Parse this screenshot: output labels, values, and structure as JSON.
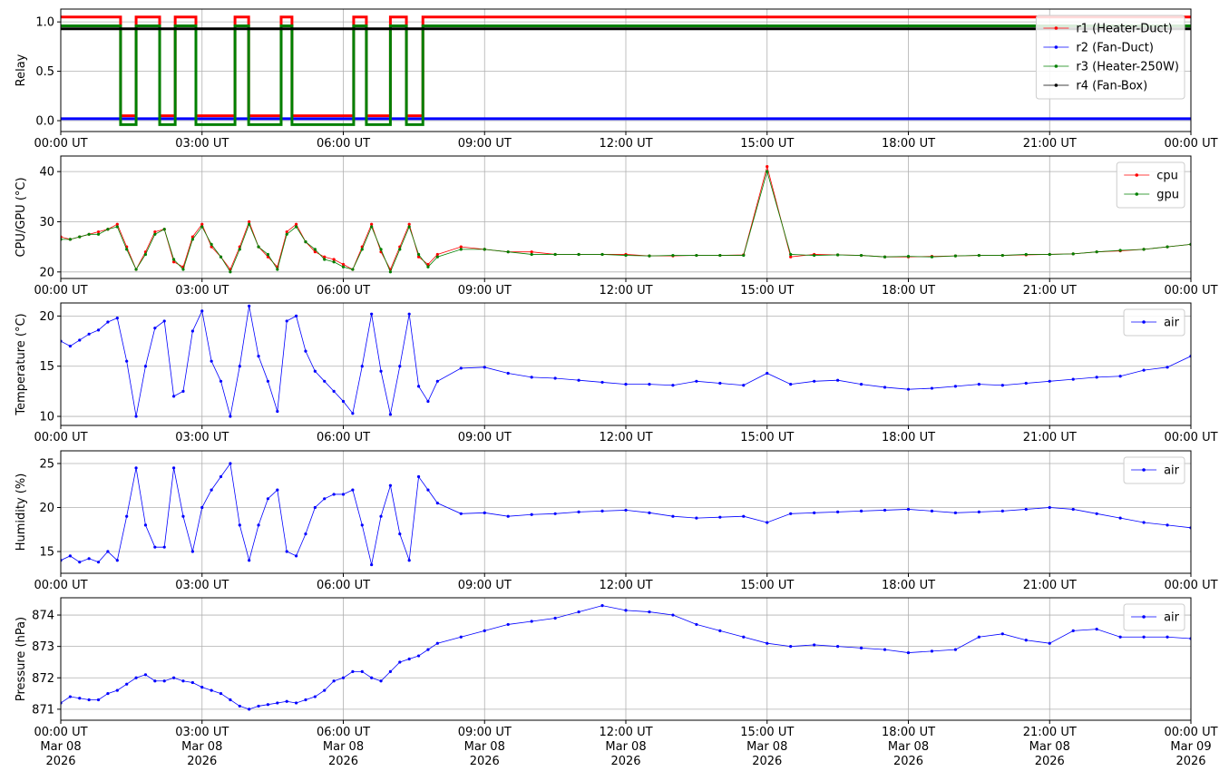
{
  "chart_data": [
    {
      "type": "step",
      "ylabel": "Relay",
      "x": [
        0,
        1.27,
        1.6,
        2.1,
        2.43,
        2.87,
        3.7,
        3.99,
        4.68,
        4.91,
        6.22,
        6.49,
        7.0,
        7.34,
        7.69,
        24
      ],
      "series": [
        {
          "name": "r1 (Heater-Duct)",
          "color": "#ff0000",
          "values": [
            1.05,
            0.05,
            1.05,
            0.05,
            1.05,
            0.05,
            1.05,
            0.05,
            1.05,
            0.05,
            1.05,
            0.05,
            1.05,
            0.05,
            1.05,
            1.05
          ]
        },
        {
          "name": "r2 (Fan-Duct)",
          "color": "#0000ff",
          "values": [
            0.02,
            0.02,
            0.02,
            0.02,
            0.02,
            0.02,
            0.02,
            0.02,
            0.02,
            0.02,
            0.02,
            0.02,
            0.02,
            0.02,
            0.02,
            0.02
          ]
        },
        {
          "name": "r3 (Heater-250W)",
          "color": "#008000",
          "values": [
            0.96,
            -0.04,
            0.96,
            -0.04,
            0.96,
            -0.04,
            0.96,
            -0.04,
            0.96,
            -0.04,
            0.96,
            -0.04,
            0.96,
            -0.04,
            0.96,
            0.96
          ]
        },
        {
          "name": "r4 (Fan-Box)",
          "color": "#000000",
          "values": [
            0.93,
            0.93,
            0.93,
            0.93,
            0.93,
            0.93,
            0.93,
            0.93,
            0.93,
            0.93,
            0.93,
            0.93,
            0.93,
            0.93,
            0.93,
            0.93
          ]
        }
      ],
      "xlim": [
        0,
        24
      ],
      "ylim": [
        -0.11,
        1.13
      ],
      "xticks": [
        {
          "value": 0,
          "label": "00:00 UT"
        },
        {
          "value": 3,
          "label": "03:00 UT"
        },
        {
          "value": 6,
          "label": "06:00 UT"
        },
        {
          "value": 9,
          "label": "09:00 UT"
        },
        {
          "value": 12,
          "label": "12:00 UT"
        },
        {
          "value": 15,
          "label": "15:00 UT"
        },
        {
          "value": 18,
          "label": "18:00 UT"
        },
        {
          "value": 21,
          "label": "21:00 UT"
        },
        {
          "value": 24,
          "label": "00:00 UT"
        }
      ],
      "yticks": [
        {
          "value": 0,
          "label": "0.0"
        },
        {
          "value": 0.5,
          "label": "0.5"
        },
        {
          "value": 1,
          "label": "1.0"
        }
      ],
      "grid": true,
      "legend": "upper right"
    },
    {
      "type": "line",
      "ylabel": "CPU/GPU (°C)",
      "x": [
        0,
        0.2,
        0.4,
        0.6,
        0.8,
        1,
        1.2,
        1.4,
        1.6,
        1.8,
        2,
        2.2,
        2.4,
        2.6,
        2.8,
        3,
        3.2,
        3.4,
        3.6,
        3.8,
        4,
        4.2,
        4.4,
        4.6,
        4.8,
        5,
        5.2,
        5.4,
        5.6,
        5.8,
        6,
        6.2,
        6.4,
        6.6,
        6.8,
        7,
        7.2,
        7.4,
        7.6,
        7.8,
        8,
        8.5,
        9,
        9.5,
        10,
        10.5,
        11,
        11.5,
        12,
        12.5,
        13,
        13.5,
        14,
        14.5,
        15,
        15.5,
        16,
        16.5,
        17,
        17.5,
        18,
        18.5,
        19,
        19.5,
        20,
        20.5,
        21,
        21.5,
        22,
        22.5,
        23,
        23.5,
        24
      ],
      "series": [
        {
          "name": "cpu",
          "color": "#ff0000",
          "values": [
            27,
            26.5,
            27,
            27.5,
            28,
            28.5,
            29.5,
            25,
            20.5,
            24,
            28,
            28.5,
            22,
            21,
            27,
            29.5,
            25,
            23,
            20.5,
            25,
            30,
            25,
            23,
            21,
            28,
            29.5,
            26,
            24,
            23,
            22.5,
            21.5,
            20.5,
            25,
            29.5,
            24,
            20.5,
            25,
            29.5,
            23,
            21.5,
            23.5,
            25,
            24.5,
            24,
            24,
            23.5,
            23.5,
            23.5,
            23.5,
            23.2,
            23.2,
            23.3,
            23.3,
            23.4,
            41,
            23,
            23.5,
            23.4,
            23.3,
            23,
            23,
            23.1,
            23.2,
            23.3,
            23.3,
            23.4,
            23.5,
            23.6,
            24,
            24.2,
            24.5,
            25,
            25.5
          ]
        },
        {
          "name": "gpu",
          "color": "#008000",
          "values": [
            26.5,
            26.5,
            27,
            27.5,
            27.5,
            28.5,
            29,
            24.5,
            20.5,
            23.5,
            27.5,
            28.5,
            22.5,
            20.5,
            26.5,
            29,
            25.5,
            23,
            20,
            24.5,
            29.5,
            25,
            23.5,
            20.5,
            27.5,
            29,
            26,
            24.5,
            22.5,
            22,
            21,
            20.5,
            24.5,
            29,
            24.5,
            20,
            24.5,
            29,
            23.5,
            21,
            23,
            24.5,
            24.5,
            24,
            23.5,
            23.5,
            23.5,
            23.5,
            23.3,
            23.2,
            23.3,
            23.3,
            23.3,
            23.3,
            40,
            23.5,
            23.3,
            23.4,
            23.3,
            23,
            23.1,
            23,
            23.2,
            23.3,
            23.3,
            23.5,
            23.5,
            23.6,
            24,
            24.3,
            24.5,
            25,
            25.5
          ]
        }
      ],
      "xlim": [
        0,
        24
      ],
      "ylim": [
        18.7,
        43.1
      ],
      "xticks": [
        {
          "value": 0,
          "label": "00:00 UT"
        },
        {
          "value": 3,
          "label": "03:00 UT"
        },
        {
          "value": 6,
          "label": "06:00 UT"
        },
        {
          "value": 9,
          "label": "09:00 UT"
        },
        {
          "value": 12,
          "label": "12:00 UT"
        },
        {
          "value": 15,
          "label": "15:00 UT"
        },
        {
          "value": 18,
          "label": "18:00 UT"
        },
        {
          "value": 21,
          "label": "21:00 UT"
        },
        {
          "value": 24,
          "label": "00:00 UT"
        }
      ],
      "yticks": [
        20,
        30,
        40
      ],
      "grid": true,
      "legend": "upper right"
    },
    {
      "type": "line",
      "ylabel": "Temperature (°C)",
      "x": [
        0,
        0.2,
        0.4,
        0.6,
        0.8,
        1,
        1.2,
        1.4,
        1.6,
        1.8,
        2,
        2.2,
        2.4,
        2.6,
        2.8,
        3,
        3.2,
        3.4,
        3.6,
        3.8,
        4,
        4.2,
        4.4,
        4.6,
        4.8,
        5,
        5.2,
        5.4,
        5.6,
        5.8,
        6,
        6.2,
        6.4,
        6.6,
        6.8,
        7,
        7.2,
        7.4,
        7.6,
        7.8,
        8,
        8.5,
        9,
        9.5,
        10,
        10.5,
        11,
        11.5,
        12,
        12.5,
        13,
        13.5,
        14,
        14.5,
        15,
        15.5,
        16,
        16.5,
        17,
        17.5,
        18,
        18.5,
        19,
        19.5,
        20,
        20.5,
        21,
        21.5,
        22,
        22.5,
        23,
        23.5,
        24
      ],
      "series": [
        {
          "name": "air",
          "color": "#0000ff",
          "values": [
            17.5,
            17,
            17.6,
            18.2,
            18.6,
            19.4,
            19.8,
            15.5,
            10,
            15,
            18.8,
            19.5,
            12,
            12.5,
            18.5,
            20.5,
            15.5,
            13.5,
            10,
            15,
            21,
            16,
            13.5,
            10.5,
            19.5,
            20,
            16.5,
            14.5,
            13.5,
            12.5,
            11.5,
            10.3,
            15,
            20.2,
            14.5,
            10.2,
            15,
            20.2,
            13,
            11.5,
            13.5,
            14.8,
            14.9,
            14.3,
            13.9,
            13.8,
            13.6,
            13.4,
            13.2,
            13.2,
            13.1,
            13.5,
            13.3,
            13.1,
            14.3,
            13.2,
            13.5,
            13.6,
            13.2,
            12.9,
            12.7,
            12.8,
            13,
            13.2,
            13.1,
            13.3,
            13.5,
            13.7,
            13.9,
            14,
            14.6,
            14.9,
            16
          ]
        }
      ],
      "xlim": [
        0,
        24
      ],
      "ylim": [
        9.1,
        21.3
      ],
      "xticks": [
        {
          "value": 0,
          "label": "00:00 UT"
        },
        {
          "value": 3,
          "label": "03:00 UT"
        },
        {
          "value": 6,
          "label": "06:00 UT"
        },
        {
          "value": 9,
          "label": "09:00 UT"
        },
        {
          "value": 12,
          "label": "12:00 UT"
        },
        {
          "value": 15,
          "label": "15:00 UT"
        },
        {
          "value": 18,
          "label": "18:00 UT"
        },
        {
          "value": 21,
          "label": "21:00 UT"
        },
        {
          "value": 24,
          "label": "00:00 UT"
        }
      ],
      "yticks": [
        10,
        15,
        20
      ],
      "grid": true,
      "legend": "upper right"
    },
    {
      "type": "line",
      "ylabel": "Humidity (%)",
      "x": [
        0,
        0.2,
        0.4,
        0.6,
        0.8,
        1,
        1.2,
        1.4,
        1.6,
        1.8,
        2,
        2.2,
        2.4,
        2.6,
        2.8,
        3,
        3.2,
        3.4,
        3.6,
        3.8,
        4,
        4.2,
        4.4,
        4.6,
        4.8,
        5,
        5.2,
        5.4,
        5.6,
        5.8,
        6,
        6.2,
        6.4,
        6.6,
        6.8,
        7,
        7.2,
        7.4,
        7.6,
        7.8,
        8,
        8.5,
        9,
        9.5,
        10,
        10.5,
        11,
        11.5,
        12,
        12.5,
        13,
        13.5,
        14,
        14.5,
        15,
        15.5,
        16,
        16.5,
        17,
        17.5,
        18,
        18.5,
        19,
        19.5,
        20,
        20.5,
        21,
        21.5,
        22,
        22.5,
        23,
        23.5,
        24
      ],
      "series": [
        {
          "name": "air",
          "color": "#0000ff",
          "values": [
            14,
            14.5,
            13.8,
            14.2,
            13.8,
            15,
            14,
            19,
            24.5,
            18,
            15.5,
            15.5,
            24.5,
            19,
            15,
            20,
            22,
            23.5,
            25,
            18,
            14,
            18,
            21,
            22,
            15,
            14.5,
            17,
            20,
            21,
            21.5,
            21.5,
            22,
            18,
            13.5,
            19,
            22.5,
            17,
            14,
            23.5,
            22,
            20.5,
            19.3,
            19.4,
            19,
            19.2,
            19.3,
            19.5,
            19.6,
            19.7,
            19.4,
            19,
            18.8,
            18.9,
            19,
            18.3,
            19.3,
            19.4,
            19.5,
            19.6,
            19.7,
            19.8,
            19.6,
            19.4,
            19.5,
            19.6,
            19.8,
            20,
            19.8,
            19.3,
            18.8,
            18.3,
            18,
            17.7
          ]
        }
      ],
      "xlim": [
        0,
        24
      ],
      "ylim": [
        12.53,
        26.44
      ],
      "xticks": [
        {
          "value": 0,
          "label": "00:00 UT"
        },
        {
          "value": 3,
          "label": "03:00 UT"
        },
        {
          "value": 6,
          "label": "06:00 UT"
        },
        {
          "value": 9,
          "label": "09:00 UT"
        },
        {
          "value": 12,
          "label": "12:00 UT"
        },
        {
          "value": 15,
          "label": "15:00 UT"
        },
        {
          "value": 18,
          "label": "18:00 UT"
        },
        {
          "value": 21,
          "label": "21:00 UT"
        },
        {
          "value": 24,
          "label": "00:00 UT"
        }
      ],
      "yticks": [
        15,
        20,
        25
      ],
      "grid": true,
      "legend": "upper right"
    },
    {
      "type": "line",
      "ylabel": "Pressure (hPa)",
      "x": [
        0,
        0.2,
        0.4,
        0.6,
        0.8,
        1,
        1.2,
        1.4,
        1.6,
        1.8,
        2,
        2.2,
        2.4,
        2.6,
        2.8,
        3,
        3.2,
        3.4,
        3.6,
        3.8,
        4,
        4.2,
        4.4,
        4.6,
        4.8,
        5,
        5.2,
        5.4,
        5.6,
        5.8,
        6,
        6.2,
        6.4,
        6.6,
        6.8,
        7,
        7.2,
        7.4,
        7.6,
        7.8,
        8,
        8.5,
        9,
        9.5,
        10,
        10.5,
        11,
        11.5,
        12,
        12.5,
        13,
        13.5,
        14,
        14.5,
        15,
        15.5,
        16,
        16.5,
        17,
        17.5,
        18,
        18.5,
        19,
        19.5,
        20,
        20.5,
        21,
        21.5,
        22,
        22.5,
        23,
        23.5,
        24
      ],
      "series": [
        {
          "name": "air",
          "color": "#0000ff",
          "values": [
            871.2,
            871.4,
            871.35,
            871.3,
            871.3,
            871.5,
            871.6,
            871.8,
            872,
            872.1,
            871.9,
            871.9,
            872,
            871.9,
            871.85,
            871.7,
            871.6,
            871.5,
            871.3,
            871.1,
            871,
            871.1,
            871.15,
            871.2,
            871.25,
            871.2,
            871.3,
            871.4,
            871.6,
            871.9,
            872,
            872.2,
            872.2,
            872,
            871.9,
            872.2,
            872.5,
            872.6,
            872.7,
            872.9,
            873.1,
            873.3,
            873.5,
            873.7,
            873.8,
            873.9,
            874.1,
            874.3,
            874.15,
            874.1,
            874,
            873.7,
            873.5,
            873.3,
            873.1,
            873,
            873.05,
            873,
            872.95,
            872.9,
            872.8,
            872.85,
            872.9,
            873.3,
            873.4,
            873.2,
            873.1,
            873.5,
            873.55,
            873.3,
            873.3,
            873.3,
            873.25
          ]
        }
      ],
      "xlim": [
        0,
        24
      ],
      "ylim": [
        870.65,
        874.55
      ],
      "xticks": [
        {
          "value": 0,
          "label": "00:00 UT\nMar 08\n2026"
        },
        {
          "value": 3,
          "label": "03:00 UT\nMar 08\n2026"
        },
        {
          "value": 6,
          "label": "06:00 UT\nMar 08\n2026"
        },
        {
          "value": 9,
          "label": "09:00 UT\nMar 08\n2026"
        },
        {
          "value": 12,
          "label": "12:00 UT\nMar 08\n2026"
        },
        {
          "value": 15,
          "label": "15:00 UT\nMar 08\n2026"
        },
        {
          "value": 18,
          "label": "18:00 UT\nMar 08\n2026"
        },
        {
          "value": 21,
          "label": "21:00 UT\nMar 08\n2026"
        },
        {
          "value": 24,
          "label": "00:00 UT\nMar 09\n2026"
        }
      ],
      "yticks": [
        871,
        872,
        873,
        874
      ],
      "grid": true,
      "legend": "upper right"
    }
  ]
}
